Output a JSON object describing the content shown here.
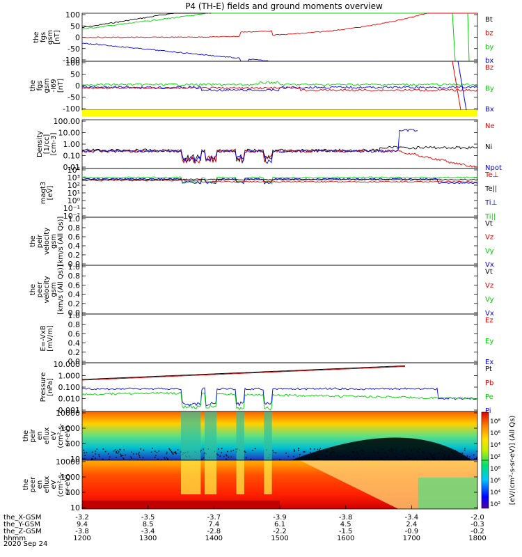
{
  "title": "P4 (TH-E) fields and ground moments overview",
  "colors": {
    "black": "#000000",
    "red": "#e00000",
    "green": "#00d000",
    "blue": "#0000e0",
    "yellow": "#ffff00"
  },
  "chart_data": [
    {
      "type": "line",
      "id": "fgs1",
      "ylabel": [
        "the",
        "fgs",
        "gsm",
        "[nT]"
      ],
      "ylim": [
        -100,
        100
      ],
      "ticks": [
        "100",
        "50",
        "0",
        "-50",
        "-100"
      ],
      "legend": [
        {
          "name": "Bt",
          "color": "#000000"
        },
        {
          "name": "bz",
          "color": "#e00000"
        },
        {
          "name": "by",
          "color": "#00d000"
        },
        {
          "name": "bx",
          "color": "#0000e0"
        }
      ]
    },
    {
      "type": "line",
      "id": "fgs2",
      "ylabel": [
        "the",
        "fgs",
        "gsm",
        "-I69",
        "[nT]"
      ],
      "ylim": [
        -120,
        120
      ],
      "ticks": [
        "100",
        "50",
        "0",
        "-50",
        "-100"
      ],
      "legend": [
        {
          "name": "Bz",
          "color": "#e00000"
        },
        {
          "name": "By",
          "color": "#00d000"
        },
        {
          "name": "Bx",
          "color": "#0000e0"
        }
      ]
    },
    {
      "type": "line",
      "id": "density",
      "scale": "log",
      "ylabel": [
        "Density",
        "[1/cc]",
        "[cm-3]"
      ],
      "ticks": [
        "100.00",
        "10.00",
        "1.00",
        "0.10",
        "0.01"
      ],
      "legend": [
        {
          "name": "Ne",
          "color": "#e00000"
        },
        {
          "name": "Ni",
          "color": "#000000"
        },
        {
          "name": "Npot",
          "color": "#0000e0"
        }
      ]
    },
    {
      "type": "line",
      "id": "temp",
      "scale": "log",
      "ylabel": [
        "magt3",
        "[eV]"
      ],
      "ticks": [
        "10⁴",
        "10³",
        "10²",
        "10¹",
        "10⁰",
        "10⁻¹",
        "10⁻²"
      ],
      "legend": [
        {
          "name": "Te⊥",
          "color": "#e00000"
        },
        {
          "name": "Te||",
          "color": "#000000"
        },
        {
          "name": "Ti⊥",
          "color": "#0000e0"
        },
        {
          "name": "Ti||",
          "color": "#00d000"
        }
      ]
    },
    {
      "type": "line",
      "id": "peirv",
      "ylabel": [
        "the",
        "peir",
        "velocity",
        "gsm",
        "[km/s (All Qs)]"
      ],
      "ylim": [
        0,
        1
      ],
      "ticks": [
        "1.0",
        "0.8",
        "0.6",
        "0.4",
        "0.2",
        "0.0"
      ],
      "legend": [
        {
          "name": "Vt",
          "color": "#000000"
        },
        {
          "name": "Vz",
          "color": "#e00000"
        },
        {
          "name": "Vy",
          "color": "#00d000"
        },
        {
          "name": "Vx",
          "color": "#0000e0"
        }
      ]
    },
    {
      "type": "line",
      "id": "peerv",
      "ylabel": [
        "the",
        "peer",
        "velocity",
        "gsm",
        "[km/s (All Qs)]"
      ],
      "ylim": [
        0,
        1
      ],
      "ticks": [
        "1.0",
        "0.8",
        "0.6",
        "0.4",
        "0.2",
        "0.0"
      ],
      "legend": [
        {
          "name": "Vt",
          "color": "#000000"
        },
        {
          "name": "Vz",
          "color": "#e00000"
        },
        {
          "name": "Vy",
          "color": "#00d000"
        },
        {
          "name": "Vx",
          "color": "#0000e0"
        }
      ]
    },
    {
      "type": "line",
      "id": "efield",
      "ylabel": [
        "E=-VxB",
        "[mV/m]"
      ],
      "ylim": [
        0,
        1
      ],
      "ticks": [
        "1.0",
        "0.8",
        "0.6",
        "0.4",
        "0.2",
        "0.0"
      ],
      "legend": [
        {
          "name": "Ez",
          "color": "#e00000"
        },
        {
          "name": "Ey",
          "color": "#00d000"
        },
        {
          "name": "Ex",
          "color": "#0000e0"
        }
      ]
    },
    {
      "type": "line",
      "id": "pressure",
      "scale": "log",
      "ylabel": [
        "Pressure",
        "[nPa]"
      ],
      "ticks": [
        "10.000",
        "1.000",
        "0.100",
        "0.010",
        "0.001"
      ],
      "legend": [
        {
          "name": "Pt",
          "color": "#000000"
        },
        {
          "name": "Pb",
          "color": "#e00000"
        },
        {
          "name": "Pe",
          "color": "#00d000"
        },
        {
          "name": "Pi",
          "color": "#0000e0"
        }
      ]
    },
    {
      "type": "heatmap",
      "id": "peirspec",
      "ylabel": [
        "the",
        "peir",
        "en",
        "eflux",
        "eV",
        "(cm²-s-",
        "sr-eV)"
      ],
      "ticks": [
        "10000",
        "1000",
        "100",
        "10"
      ]
    },
    {
      "type": "heatmap",
      "id": "peerspec",
      "ylabel": [
        "the",
        "peer",
        "en",
        "eflux",
        "eV",
        "(cm²-s-",
        "sr-eV)"
      ],
      "ticks": [
        "10000",
        "1000",
        "100",
        "10"
      ]
    }
  ],
  "colorbar": {
    "label": "[eV/(cm²-s-sr-eV)] (All Qs)",
    "ticks_top": [
      "10⁸",
      "10⁶",
      "10⁴",
      "10²"
    ],
    "ticks_bottom": [
      "10⁸",
      "10⁶",
      "10⁴",
      "10²"
    ]
  },
  "xaxis": {
    "rows": [
      {
        "name": "the_X-GSM",
        "values": [
          "-3.2",
          "-3.5",
          "-3.7",
          "-3.9",
          "-3.8",
          "-3.4",
          "-2.0"
        ]
      },
      {
        "name": "the_Y-GSM",
        "values": [
          "9.4",
          "8.5",
          "7.4",
          "6.1",
          "4.5",
          "2.4",
          "-0.3"
        ]
      },
      {
        "name": "the_Z-GSM",
        "values": [
          "-3.8",
          "-3.4",
          "-2.8",
          "-2.2",
          "-1.5",
          "-0.9",
          "-0.2"
        ]
      },
      {
        "name": "hhmm",
        "values": [
          "1200",
          "1300",
          "1400",
          "1500",
          "1600",
          "1700",
          "1800"
        ]
      }
    ],
    "date": "2020 Sep 24"
  }
}
